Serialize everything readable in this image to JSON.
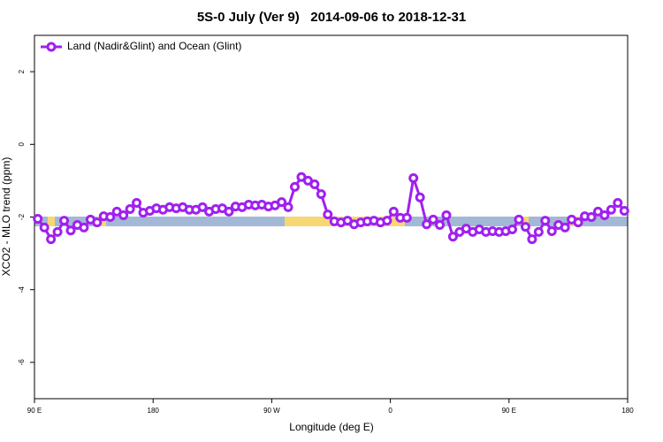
{
  "chart_data": {
    "type": "line",
    "title": "5S-0 July (Ver 9)   2014-09-06 to 2018-12-31",
    "x_label": "Longitude (deg E)",
    "y_label": "XCO2 - MLO trend (ppm)",
    "xlim": [
      90,
      540
    ],
    "ylim": [
      -7,
      3
    ],
    "xticks": [
      {
        "value": 90,
        "label": "90 E"
      },
      {
        "value": 180,
        "label": "180"
      },
      {
        "value": 270,
        "label": "90 W"
      },
      {
        "value": 360,
        "label": "0"
      },
      {
        "value": 450,
        "label": "90 E"
      },
      {
        "value": 540,
        "label": "180"
      }
    ],
    "yticks": [
      -6,
      -4,
      -2,
      0,
      2
    ],
    "legend_position": "upper left",
    "x": [
      92.5,
      97.5,
      102.5,
      107.5,
      112.5,
      117.5,
      122.5,
      127.5,
      132.5,
      137.5,
      142.5,
      147.5,
      152.5,
      157.5,
      162.5,
      167.5,
      172.5,
      177.5,
      182.5,
      187.5,
      192.5,
      197.5,
      202.5,
      207.5,
      212.5,
      217.5,
      222.5,
      227.5,
      232.5,
      237.5,
      242.5,
      247.5,
      252.5,
      257.5,
      262.5,
      267.5,
      272.5,
      277.5,
      282.5,
      287.5,
      292.5,
      297.5,
      302.5,
      307.5,
      312.5,
      317.5,
      322.5,
      327.5,
      332.5,
      337.5,
      342.5,
      347.5,
      352.5,
      357.5,
      362.5,
      367.5,
      372.5,
      377.5,
      382.5,
      387.5,
      392.5,
      397.5,
      402.5,
      407.5,
      412.5,
      417.5,
      422.5,
      427.5,
      432.5,
      437.5,
      442.5,
      447.5,
      452.5,
      457.5,
      462.5,
      467.5,
      472.5,
      477.5,
      482.5,
      487.5,
      492.5,
      497.5,
      502.5,
      507.5,
      512.5,
      517.5,
      522.5,
      527.5,
      532.5,
      537.5
    ],
    "series": [
      {
        "name": "Land (Nadir&Glint) and Ocean (Glint)",
        "color": "#a020f0",
        "values": [
          -2.05,
          -2.29,
          -2.61,
          -2.41,
          -2.1,
          -2.37,
          -2.22,
          -2.29,
          -2.07,
          -2.15,
          -1.98,
          -2.0,
          -1.85,
          -1.95,
          -1.78,
          -1.61,
          -1.88,
          -1.83,
          -1.76,
          -1.8,
          -1.73,
          -1.76,
          -1.73,
          -1.8,
          -1.8,
          -1.73,
          -1.85,
          -1.78,
          -1.76,
          -1.85,
          -1.71,
          -1.73,
          -1.66,
          -1.68,
          -1.66,
          -1.71,
          -1.68,
          -1.59,
          -1.73,
          -1.17,
          -0.9,
          -1.0,
          -1.1,
          -1.37,
          -1.93,
          -2.12,
          -2.15,
          -2.1,
          -2.2,
          -2.15,
          -2.12,
          -2.1,
          -2.15,
          -2.1,
          -1.85,
          -2.02,
          -2.02,
          -0.93,
          -1.46,
          -2.2,
          -2.07,
          -2.22,
          -1.95,
          -2.54,
          -2.41,
          -2.32,
          -2.41,
          -2.34,
          -2.41,
          -2.39,
          -2.41,
          -2.39,
          -2.34,
          -2.07,
          -2.27,
          -2.61,
          -2.41,
          -2.1,
          -2.39,
          -2.22,
          -2.29,
          -2.07,
          -2.15,
          -1.98,
          -2.0,
          -1.85,
          -1.95,
          -1.8,
          -1.61,
          -1.83
        ]
      }
    ]
  }
}
